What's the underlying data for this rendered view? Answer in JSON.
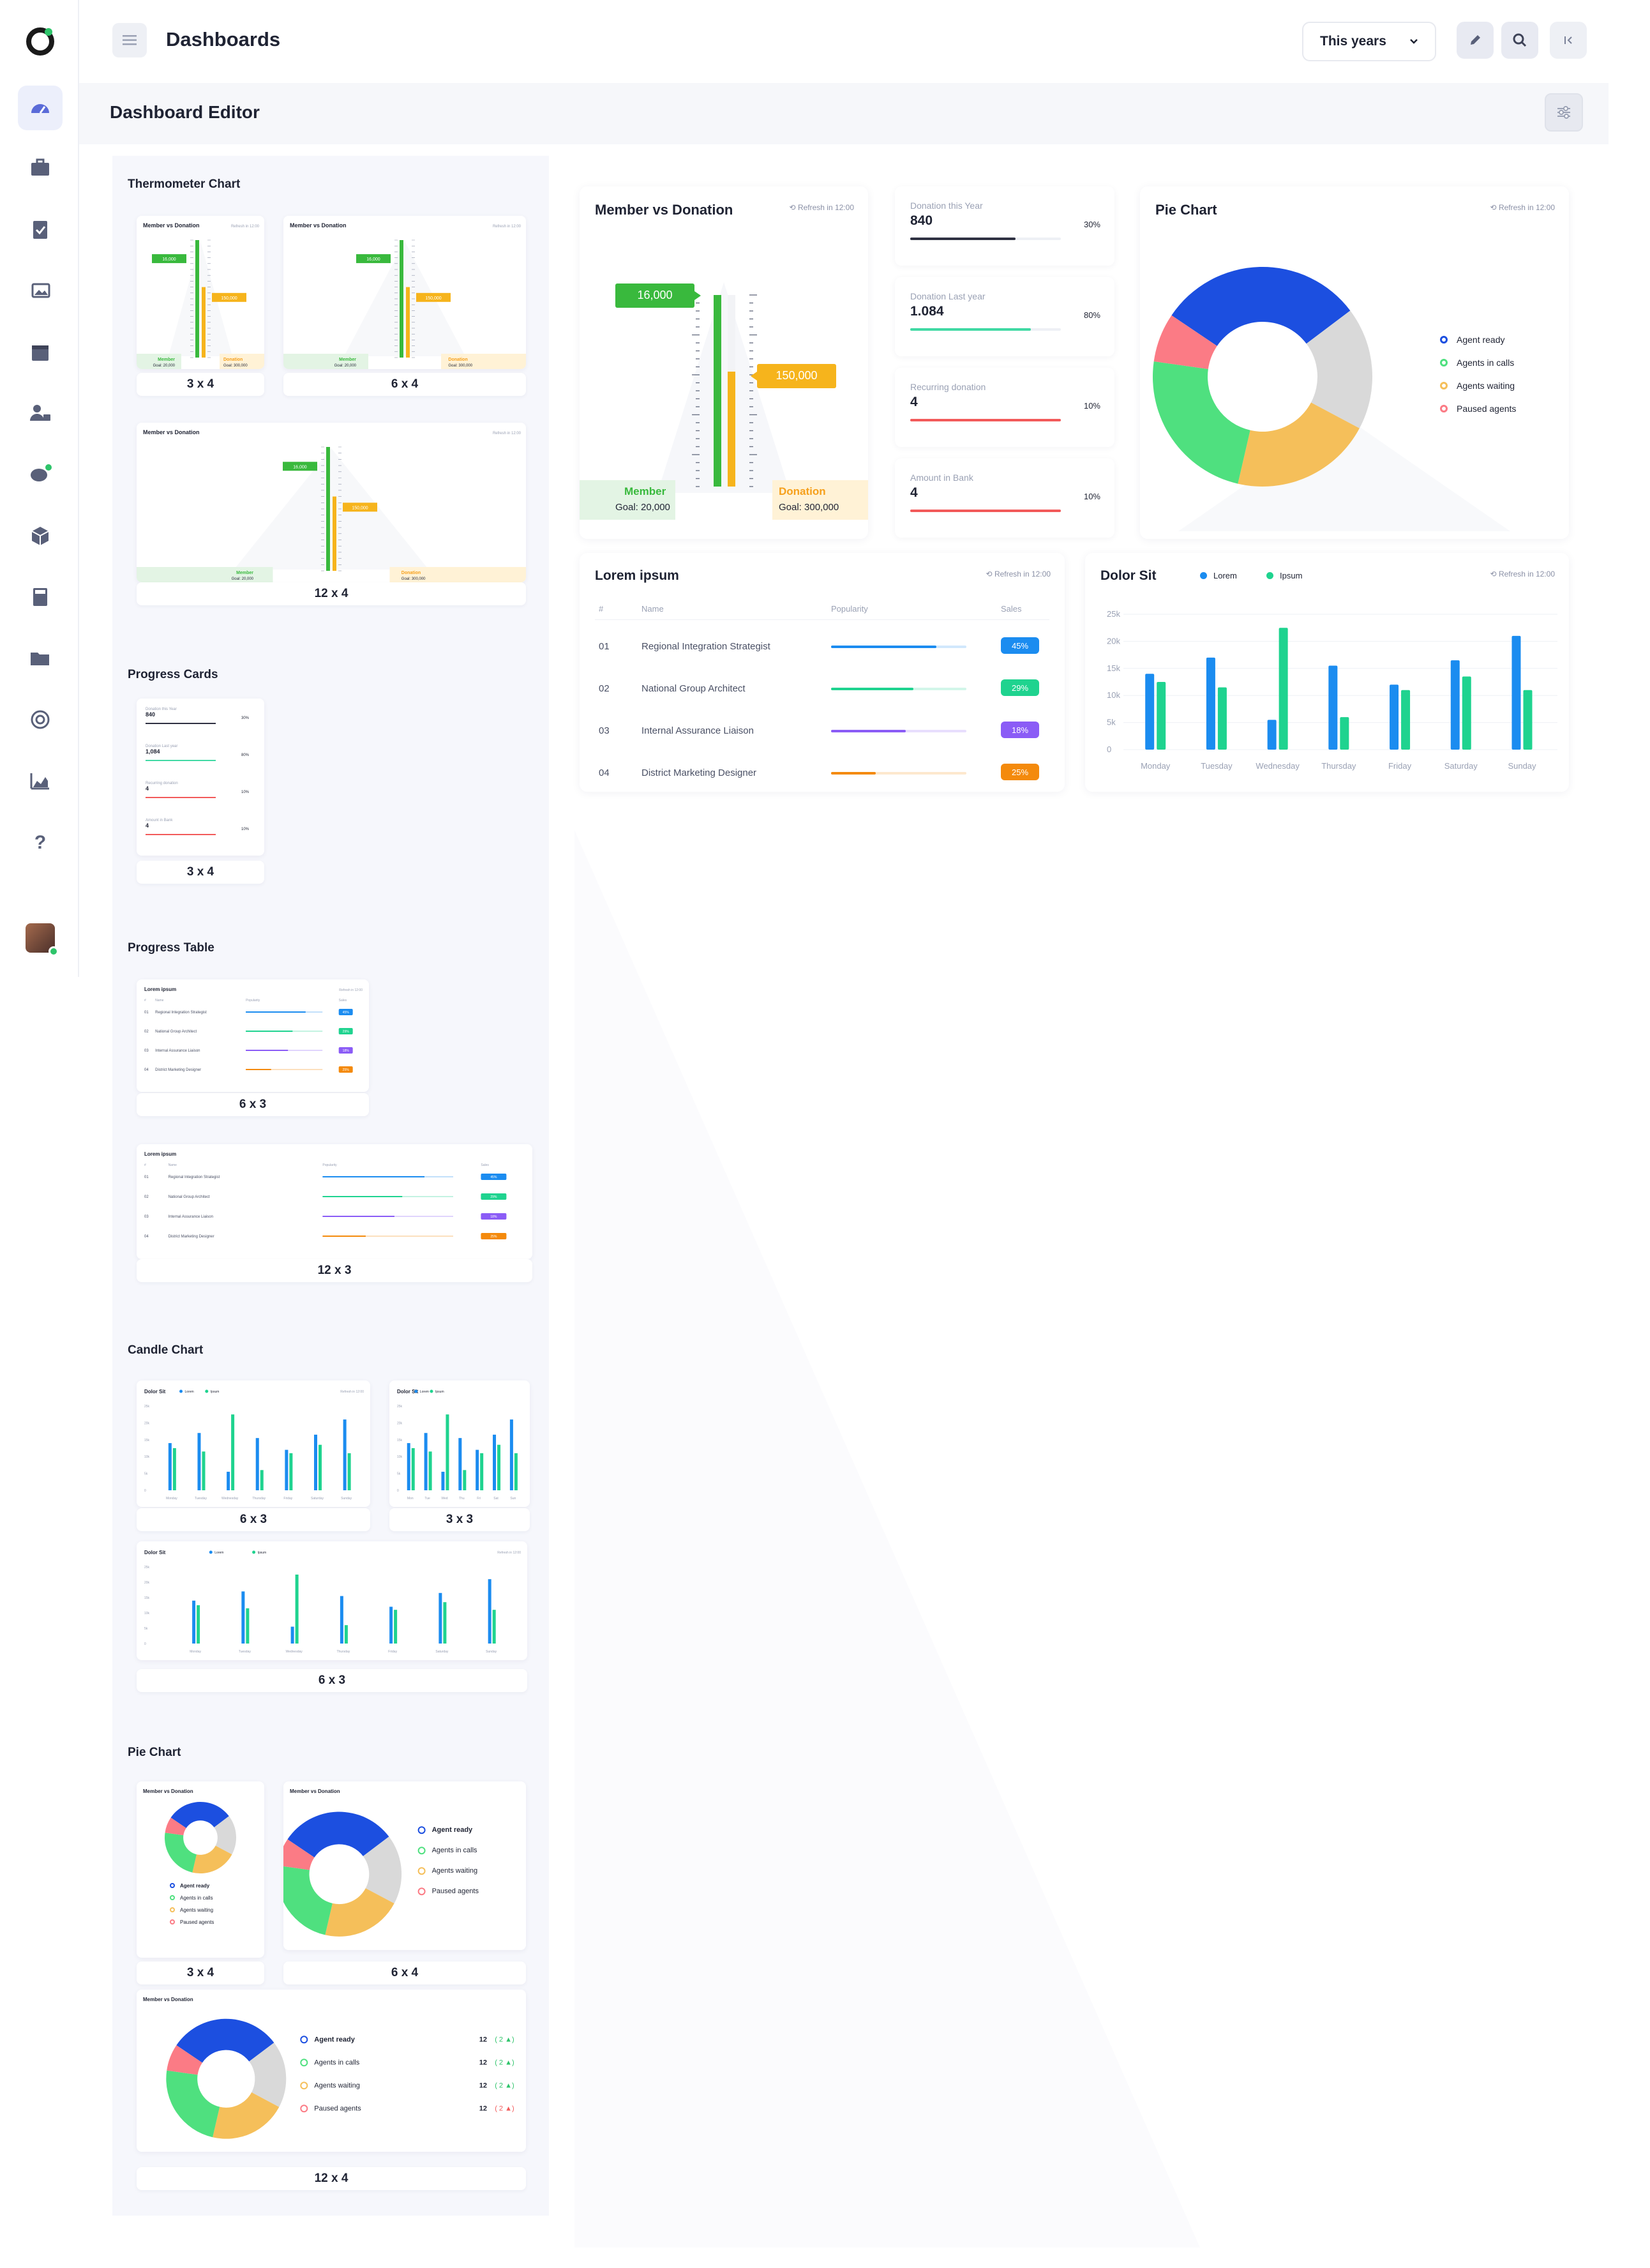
{
  "header": {
    "title": "Dashboards",
    "year_selector": "This years"
  },
  "editor": {
    "title": "Dashboard Editor"
  },
  "sidebar": {
    "items": [
      "dashboard-icon",
      "briefcase-icon",
      "clipboard-icon",
      "image-icon",
      "calendar-icon",
      "user-lock-icon",
      "chat-icon",
      "box-icon",
      "calculator-icon",
      "folder-icon",
      "target-icon",
      "area-chart-icon",
      "help-icon"
    ]
  },
  "library": {
    "sections": [
      "Thermometer Chart",
      "Progress Cards",
      "Progress Table",
      "Candle Chart",
      "Pie Chart"
    ],
    "thermo": {
      "s1": "3 x 4",
      "s2": "6 x 4",
      "s3": "12 x 4",
      "title": "Member vs Donation",
      "refresh": "Refresh in 12:00",
      "member": "Member",
      "donation": "Donation",
      "goal_m": "Goal: 20,000",
      "goal_d": "Goal: 300,000",
      "v1": "16,000",
      "v2": "150,000"
    },
    "cards": {
      "s1": "3 x 4",
      "rows": [
        {
          "label": "Donation this Year",
          "value": "840",
          "pct": "30%"
        },
        {
          "label": "Donation Last year",
          "value": "1,084",
          "pct": "80%"
        },
        {
          "label": "Recurring donation",
          "value": "4",
          "pct": "10%"
        },
        {
          "label": "Amount in Bank",
          "value": "4",
          "pct": "10%"
        }
      ]
    },
    "table": {
      "s1": "6 x 3",
      "s2": "12 x 3",
      "title": "Lorem ipsum",
      "refresh": "Refresh in 12:00",
      "h_num": "#",
      "h_name": "Name",
      "h_pop": "Popularity",
      "h_sales": "Sales",
      "rows": [
        {
          "n": "01",
          "name": "Regional Integration Strategist",
          "sales": "45%"
        },
        {
          "n": "02",
          "name": "National Group Architect",
          "sales": "29%"
        },
        {
          "n": "03",
          "name": "Internal Assurance Liaison",
          "sales": "18%"
        },
        {
          "n": "04",
          "name": "District Marketing Designer",
          "sales": "25%"
        }
      ]
    },
    "candle": {
      "s1": "6 x 3",
      "s2": "3 x 3",
      "s3": "6 x 3",
      "title": "Dolor Sit",
      "refresh": "Refresh in 12:00",
      "l1": "Lorem",
      "l2": "Ipsum",
      "days": [
        "Monday",
        "Tuesday",
        "Wednesday",
        "Thursday",
        "Friday",
        "Saturday",
        "Sunday"
      ],
      "days_short": [
        "Mon",
        "Tue",
        "Wed",
        "Thu",
        "Fri",
        "Sat",
        "Sun"
      ],
      "yt": [
        "25k",
        "20k",
        "15k",
        "10k",
        "5k",
        "0"
      ]
    },
    "pie": {
      "s1": "3 x 4",
      "s2": "6 x 4",
      "s3": "12 x 4",
      "title": "Member vs Donation",
      "legend": [
        "Agent ready",
        "Agents in calls",
        "Agents waiting",
        "Paused agents"
      ],
      "value": "12",
      "change": "2",
      "changes": [
        "( 2 ▲)",
        "( 2 ▲)",
        "( 2 ▲)",
        "( 2 ▲)"
      ]
    }
  },
  "widgets": {
    "thermo": {
      "title": "Member vs Donation",
      "refresh": "Refresh in 12:00",
      "member_value": "16,000",
      "donation_value": "150,000",
      "member_label": "Member",
      "member_goal": "Goal: 20,000",
      "donation_label": "Donation",
      "donation_goal": "Goal: 300,000"
    },
    "progress_cards": [
      {
        "label": "Donation this Year",
        "value": "840",
        "pct": "30%",
        "fill": 0.7,
        "color": "#2f3142"
      },
      {
        "label": "Donation Last year",
        "value": "1.084",
        "pct": "80%",
        "fill": 0.8,
        "color": "#41d9a4"
      },
      {
        "label": "Recurring donation",
        "value": "4",
        "pct": "10%",
        "fill": 1.0,
        "color": "#f25a5a"
      },
      {
        "label": "Amount in Bank",
        "value": "4",
        "pct": "10%",
        "fill": 1.0,
        "color": "#f25a5a"
      }
    ],
    "pie": {
      "title": "Pie Chart",
      "refresh": "Refresh in 12:00",
      "legend": [
        "Agent ready",
        "Agents in calls",
        "Agents waiting",
        "Paused agents"
      ]
    },
    "table": {
      "title": "Lorem ipsum",
      "refresh": "Refresh in 12:00",
      "h_num": "#",
      "h_name": "Name",
      "h_pop": "Popularity",
      "h_sales": "Sales",
      "rows": [
        {
          "n": "01",
          "name": "Regional Integration Strategist",
          "sales": "45%",
          "pop": 0.78,
          "color": "#1b8cf0"
        },
        {
          "n": "02",
          "name": "National Group Architect",
          "sales": "29%",
          "pop": 0.61,
          "color": "#1fd38f"
        },
        {
          "n": "03",
          "name": "Internal Assurance Liaison",
          "sales": "18%",
          "pop": 0.55,
          "color": "#8b5cf6"
        },
        {
          "n": "04",
          "name": "District Marketing Designer",
          "sales": "25%",
          "pop": 0.33,
          "color": "#f48a0c"
        }
      ]
    },
    "bars": {
      "title": "Dolor Sit",
      "refresh": "Refresh in 12:00",
      "lorem": "Lorem",
      "ipsum": "Ipsum"
    }
  },
  "chart_data": [
    {
      "type": "bar",
      "title": "Dolor Sit",
      "categories": [
        "Monday",
        "Tuesday",
        "Wednesday",
        "Thursday",
        "Friday",
        "Saturday",
        "Sunday"
      ],
      "ylim": [
        0,
        25000
      ],
      "yticks": [
        "25k",
        "20k",
        "15k",
        "10k",
        "5k",
        "0"
      ],
      "series": [
        {
          "name": "Lorem",
          "color": "#1b8cf0",
          "values": [
            14000,
            17000,
            5500,
            15500,
            12000,
            16500,
            21000
          ]
        },
        {
          "name": "Ipsum",
          "color": "#1fd38f",
          "values": [
            12500,
            11500,
            22500,
            6000,
            11000,
            13500,
            11000
          ]
        }
      ]
    },
    {
      "type": "pie",
      "title": "Pie Chart",
      "categories": [
        "Agent ready",
        "Agents in calls",
        "Agents waiting",
        "Paused agents"
      ],
      "values": [
        0.5,
        0.3,
        0.45,
        0.2
      ],
      "colors": [
        "#1c4fe0",
        "#4fe07f",
        "#f5bf5a",
        "#fb7b85"
      ],
      "extra": {
        "grey": 0.25
      }
    }
  ]
}
